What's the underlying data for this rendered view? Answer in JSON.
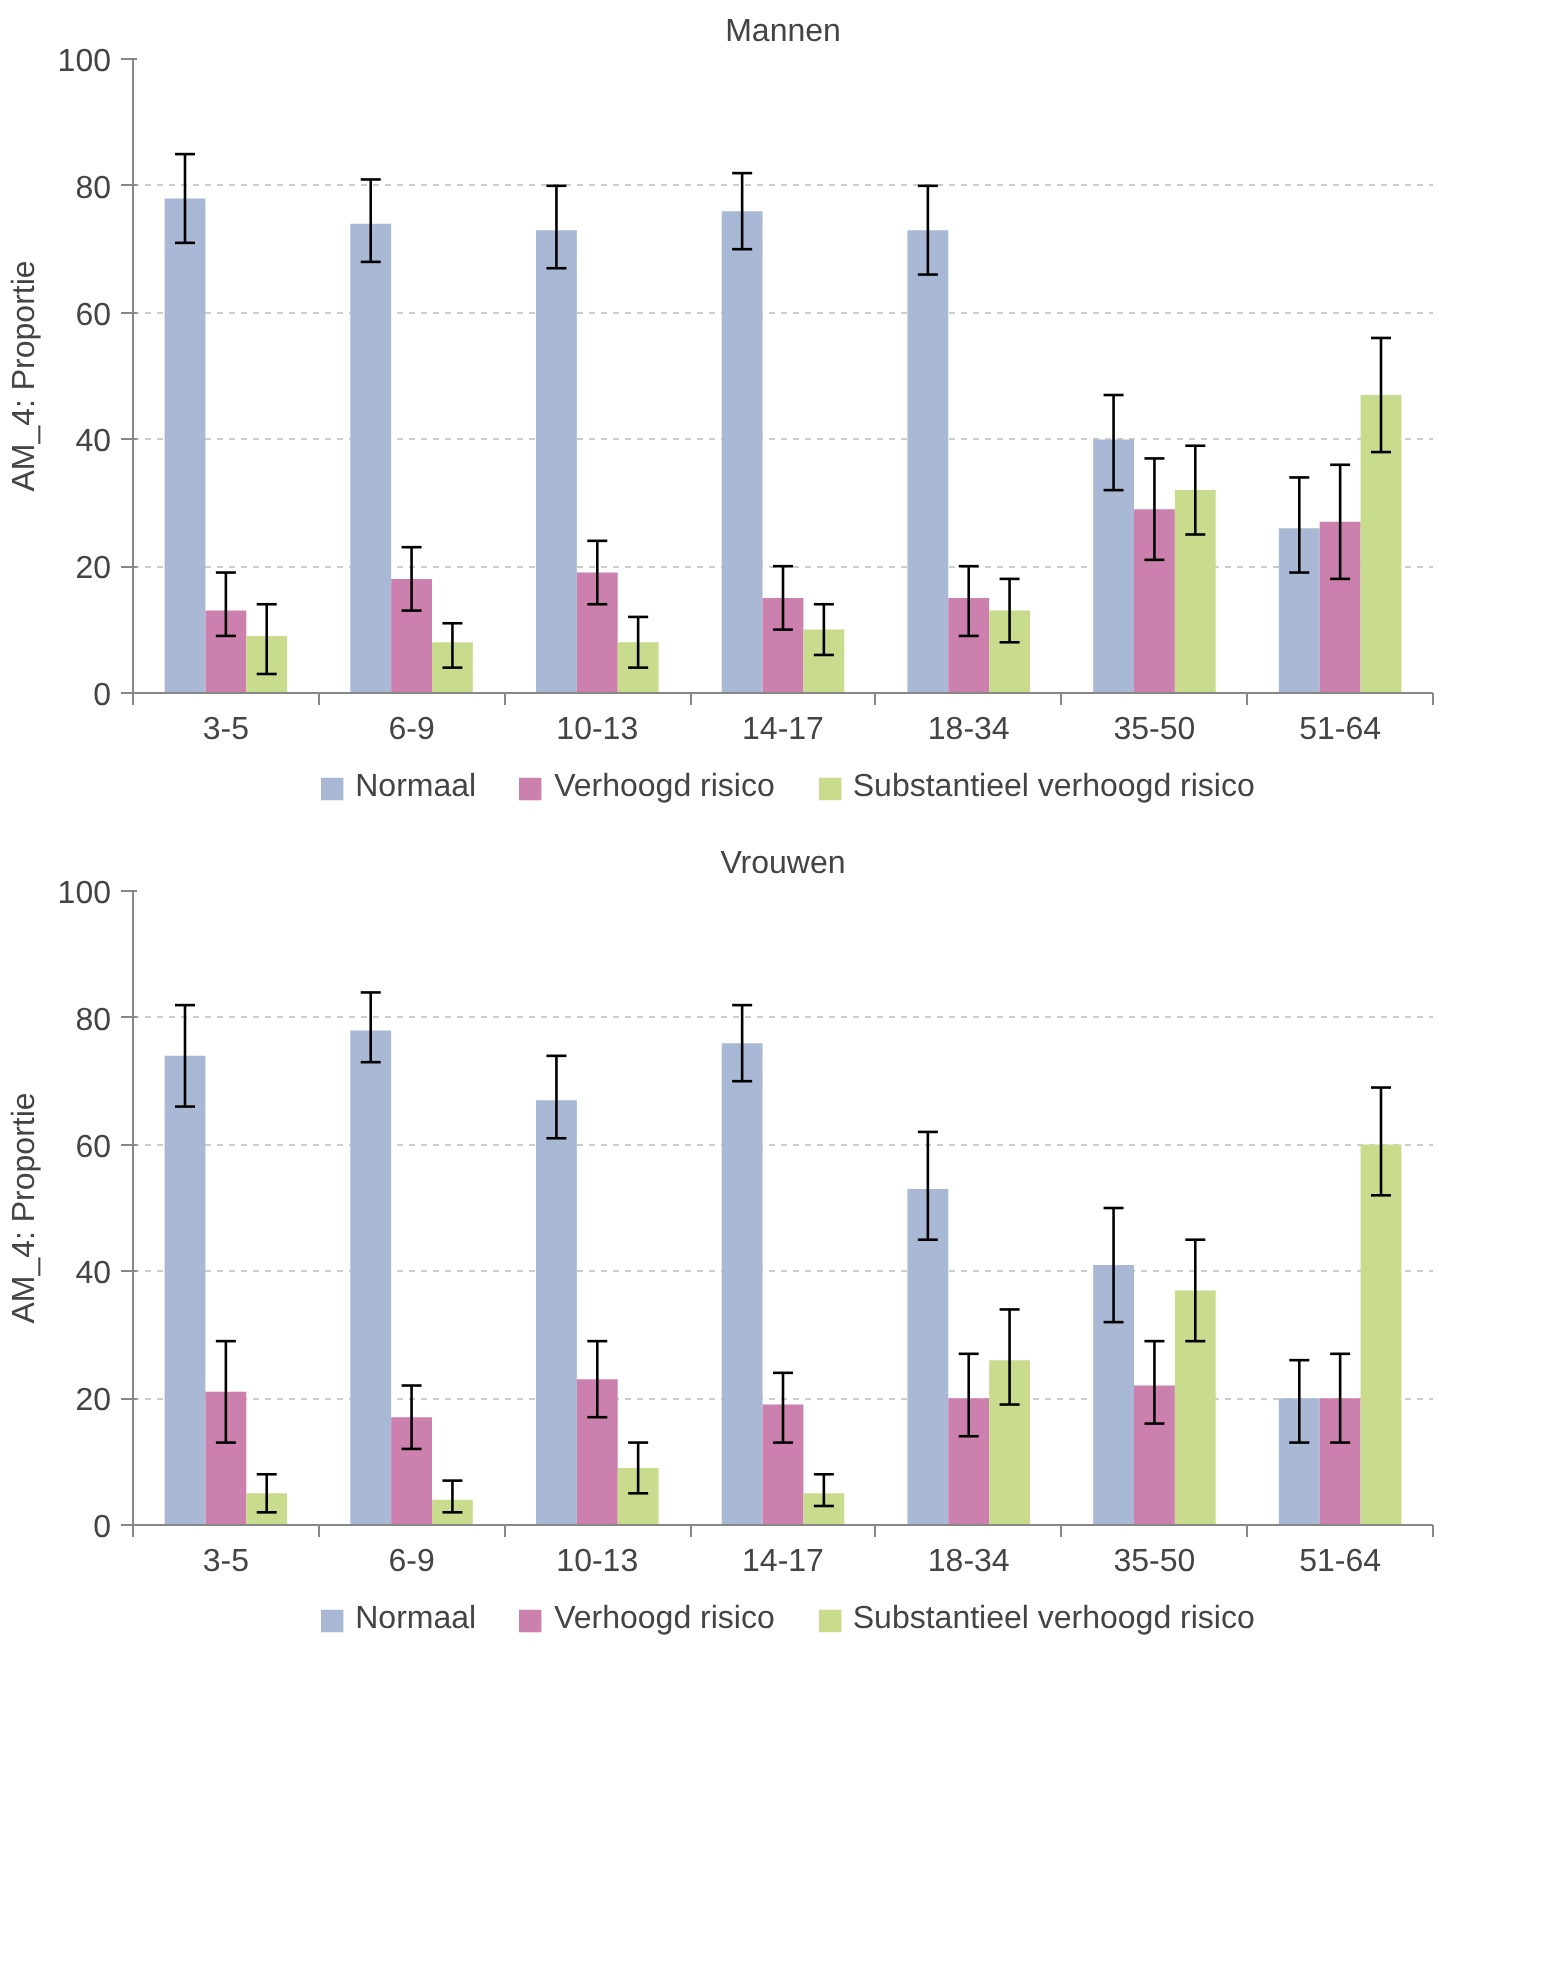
{
  "chart_data": [
    {
      "type": "bar",
      "title": "Mannen",
      "ylabel": "AM_4: Proportie",
      "categories": [
        "3-5",
        "6-9",
        "10-13",
        "14-17",
        "18-34",
        "35-50",
        "51-64"
      ],
      "ylim": [
        0,
        100
      ],
      "yticks": [
        0,
        20,
        40,
        60,
        80,
        100
      ],
      "grid": "y",
      "legend": "bottom",
      "series": [
        {
          "name": "Normaal",
          "color": "#a9b8d4",
          "values": [
            78,
            74,
            73,
            76,
            73,
            40,
            26
          ],
          "errors": [
            [
              71,
              85
            ],
            [
              68,
              81
            ],
            [
              67,
              80
            ],
            [
              70,
              82
            ],
            [
              66,
              80
            ],
            [
              32,
              47
            ],
            [
              19,
              34
            ]
          ]
        },
        {
          "name": "Verhoogd risico",
          "color": "#cc80ad",
          "values": [
            13,
            18,
            19,
            15,
            15,
            29,
            27
          ],
          "errors": [
            [
              9,
              19
            ],
            [
              13,
              23
            ],
            [
              14,
              24
            ],
            [
              10,
              20
            ],
            [
              9,
              20
            ],
            [
              21,
              37
            ],
            [
              18,
              36
            ]
          ]
        },
        {
          "name": "Substantieel verhoogd risico",
          "color": "#c9dc8e",
          "values": [
            9,
            8,
            8,
            10,
            13,
            32,
            47
          ],
          "errors": [
            [
              3,
              14
            ],
            [
              4,
              11
            ],
            [
              4,
              12
            ],
            [
              6,
              14
            ],
            [
              8,
              18
            ],
            [
              25,
              39
            ],
            [
              38,
              56
            ]
          ]
        }
      ]
    },
    {
      "type": "bar",
      "title": "Vrouwen",
      "ylabel": "AM_4: Proportie",
      "categories": [
        "3-5",
        "6-9",
        "10-13",
        "14-17",
        "18-34",
        "35-50",
        "51-64"
      ],
      "ylim": [
        0,
        100
      ],
      "yticks": [
        0,
        20,
        40,
        60,
        80,
        100
      ],
      "grid": "y",
      "legend": "bottom",
      "series": [
        {
          "name": "Normaal",
          "color": "#a9b8d4",
          "values": [
            74,
            78,
            67,
            76,
            53,
            41,
            20
          ],
          "errors": [
            [
              66,
              82
            ],
            [
              73,
              84
            ],
            [
              61,
              74
            ],
            [
              70,
              82
            ],
            [
              45,
              62
            ],
            [
              32,
              50
            ],
            [
              13,
              26
            ]
          ]
        },
        {
          "name": "Verhoogd risico",
          "color": "#cc80ad",
          "values": [
            21,
            17,
            23,
            19,
            20,
            22,
            20
          ],
          "errors": [
            [
              13,
              29
            ],
            [
              12,
              22
            ],
            [
              17,
              29
            ],
            [
              13,
              24
            ],
            [
              14,
              27
            ],
            [
              16,
              29
            ],
            [
              13,
              27
            ]
          ]
        },
        {
          "name": "Substantieel verhoogd risico",
          "color": "#c9dc8e",
          "values": [
            5,
            4,
            9,
            5,
            26,
            37,
            60
          ],
          "errors": [
            [
              2,
              8
            ],
            [
              2,
              7
            ],
            [
              5,
              13
            ],
            [
              3,
              8
            ],
            [
              19,
              34
            ],
            [
              29,
              45
            ],
            [
              52,
              69
            ]
          ]
        }
      ]
    }
  ]
}
